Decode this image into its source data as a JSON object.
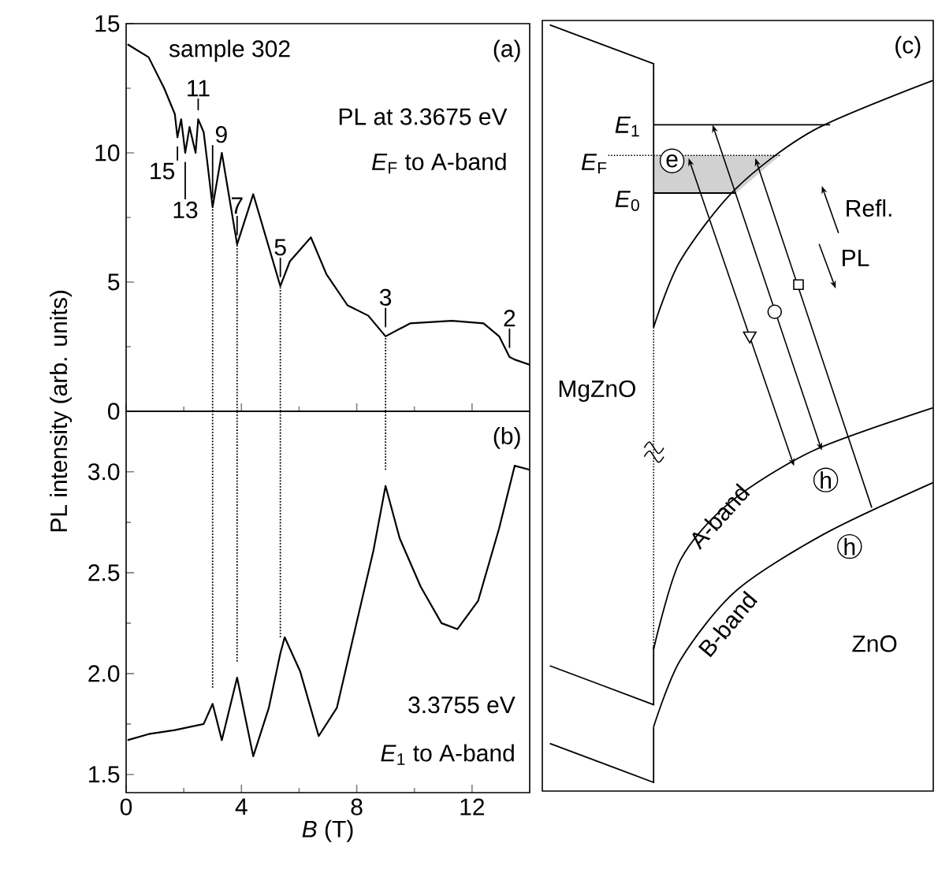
{
  "chart_data": [
    {
      "type": "line",
      "ylabel": "PL intensity (arb. units)",
      "xlim": [
        0,
        14
      ],
      "ylim": [
        0,
        15
      ],
      "xticks": [
        0,
        4,
        8,
        12
      ],
      "yticks": [
        0,
        5,
        10,
        15
      ],
      "tick_labels": "y",
      "line_style": "solid",
      "marker": "none",
      "series": [
        {
          "color": "#000000",
          "x": [
            0.05,
            0.78,
            1.32,
            1.69,
            1.78,
            1.91,
            2.05,
            2.2,
            2.41,
            2.5,
            2.69,
            2.81,
            3.0,
            3.32,
            3.85,
            4.41,
            5.35,
            5.68,
            6.41,
            6.95,
            7.68,
            8.4,
            9.0,
            9.85,
            11.3,
            12.4,
            12.94,
            13.3,
            13.48,
            14.0
          ],
          "values": [
            14.2,
            13.7,
            12.5,
            11.5,
            10.6,
            11.3,
            10.0,
            11.0,
            10.0,
            11.3,
            10.8,
            9.7,
            7.9,
            10.0,
            6.46,
            8.4,
            4.84,
            5.8,
            6.73,
            5.3,
            4.1,
            3.7,
            2.9,
            3.4,
            3.5,
            3.4,
            2.9,
            2.1,
            2.0,
            1.8
          ]
        }
      ],
      "ref_lines": [
        {
          "axis": "x",
          "value": 3.0,
          "line_style": "dotted"
        },
        {
          "axis": "x",
          "value": 3.85,
          "line_style": "dotted"
        },
        {
          "axis": "x",
          "value": 5.35,
          "line_style": "dotted"
        },
        {
          "axis": "x",
          "value": 9.0,
          "line_style": "dotted"
        }
      ],
      "annotations": [
        "sample 302",
        "(a)",
        "PL at 3.3675 eV",
        "*E*$_{F}$ to A-band",
        {
          "text": "15",
          "x": 1.78,
          "y": 10.6
        },
        {
          "text": "13",
          "x": 2.05,
          "y": 10.0
        },
        {
          "text": "11",
          "x": 2.5,
          "y": 11.3
        },
        {
          "text": "9",
          "x": 3.0,
          "y": 7.9
        },
        {
          "text": "7",
          "x": 3.85,
          "y": 6.46
        },
        {
          "text": "5",
          "x": 5.35,
          "y": 4.84
        },
        {
          "text": "3",
          "x": 9.0,
          "y": 2.9
        },
        {
          "text": "2",
          "x": 13.3,
          "y": 2.1
        }
      ]
    },
    {
      "type": "line",
      "xlabel": "*B* (T)",
      "xlim": [
        0,
        14
      ],
      "ylim": [
        1.41,
        3.3
      ],
      "xticks": [
        0,
        4,
        8,
        12
      ],
      "yticks": [
        {
          "value": 1.5,
          "label": "1.5"
        },
        {
          "value": 2.0,
          "label": "2.0"
        },
        {
          "value": 2.5,
          "label": "2.5"
        },
        {
          "value": 3.0,
          "label": "3.0"
        }
      ],
      "line_style": "solid",
      "marker": "none",
      "series": [
        {
          "color": "#000000",
          "x": [
            0.05,
            0.78,
            1.69,
            2.69,
            3.0,
            3.32,
            3.85,
            4.41,
            4.95,
            5.35,
            5.5,
            6.04,
            6.68,
            7.31,
            8.04,
            8.58,
            9.0,
            9.49,
            10.22,
            10.94,
            11.49,
            12.21,
            12.94,
            13.48,
            14.0
          ],
          "values": [
            1.67,
            1.7,
            1.72,
            1.75,
            1.85,
            1.67,
            1.98,
            1.59,
            1.83,
            2.1,
            2.18,
            2.01,
            1.69,
            1.83,
            2.28,
            2.61,
            2.93,
            2.67,
            2.43,
            2.25,
            2.22,
            2.36,
            2.72,
            3.03,
            3.01
          ]
        }
      ],
      "ref_lines": [
        {
          "axis": "x",
          "value": 3.0,
          "line_style": "dotted"
        },
        {
          "axis": "x",
          "value": 3.85,
          "line_style": "dotted"
        },
        {
          "axis": "x",
          "value": 5.35,
          "line_style": "dotted"
        },
        {
          "axis": "x",
          "value": 9.0,
          "line_style": "dotted"
        }
      ],
      "annotations": [
        "(b)",
        "3.3755 eV",
        "*E*$_{1}$ to A-band"
      ]
    },
    {
      "type": "other",
      "annotations": [
        "(c)",
        "*E*$_{1}$",
        "*E*$_{F}$",
        "*E*$_{0}$",
        "e",
        "Refl.",
        "PL",
        "MgZnO",
        "h",
        "h",
        "A-band",
        "B-band",
        "ZnO"
      ]
    }
  ]
}
